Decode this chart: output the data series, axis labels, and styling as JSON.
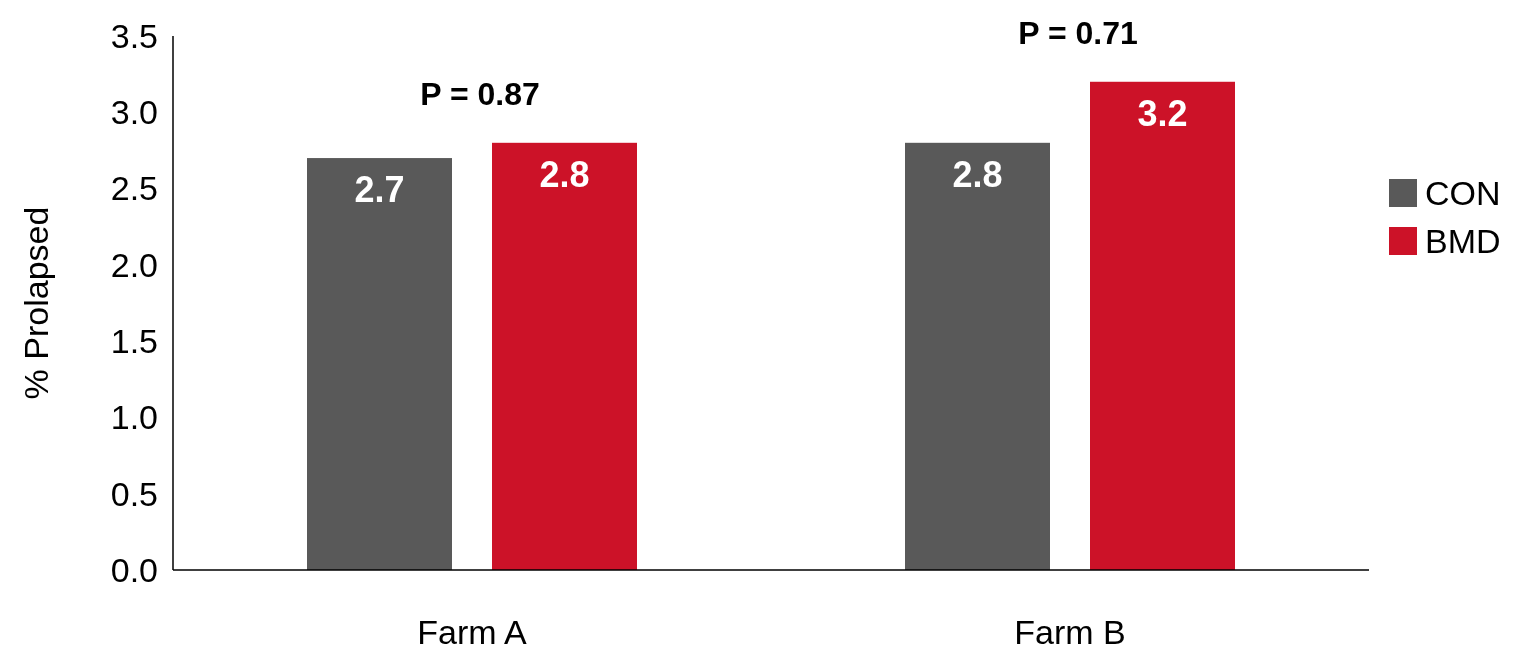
{
  "chart_data": {
    "type": "bar",
    "ylabel": "% Prolapsed",
    "categories": [
      "Farm A",
      "Farm B"
    ],
    "series": [
      {
        "name": "CON",
        "color": "#595959",
        "values": [
          2.7,
          2.8
        ]
      },
      {
        "name": "BMD",
        "color": "#cc1228",
        "values": [
          2.8,
          3.2
        ]
      }
    ],
    "ylim": [
      0,
      3.5
    ],
    "yticks": [
      {
        "value": 0,
        "label": "0.0"
      },
      {
        "value": 0.5,
        "label": "0.5"
      },
      {
        "value": 1,
        "label": "1.0"
      },
      {
        "value": 1.5,
        "label": "1.5"
      },
      {
        "value": 2,
        "label": "2.0"
      },
      {
        "value": 2.5,
        "label": "2.5"
      },
      {
        "value": 3,
        "label": "3.0"
      },
      {
        "value": 3.5,
        "label": "3.5"
      }
    ],
    "data_labels": true,
    "legend": "right",
    "grid": false,
    "annotations": [
      "P = 0.87",
      "P = 0.71"
    ]
  }
}
